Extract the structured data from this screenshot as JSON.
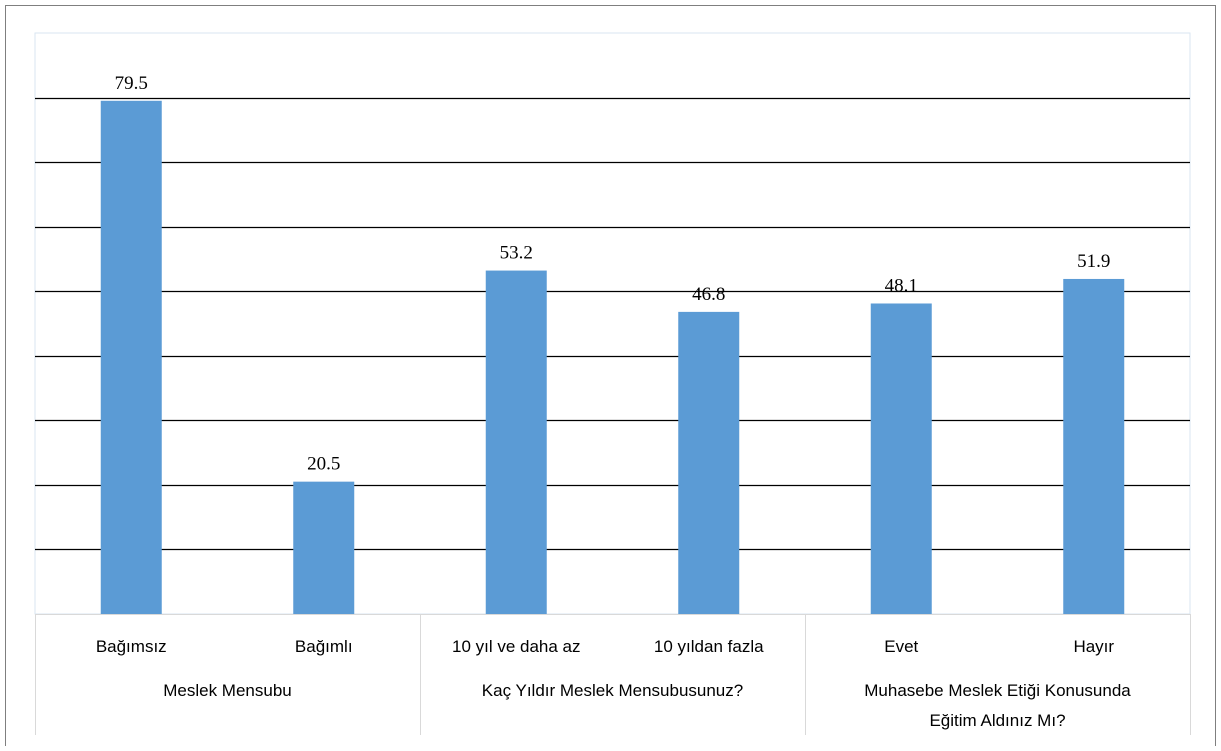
{
  "chart_data": {
    "type": "bar",
    "title": "",
    "xlabel": "",
    "ylabel": "",
    "ylim": [
      0,
      90
    ],
    "grid": true,
    "bar_color": "#5b9bd5",
    "gridline_color": "#000000",
    "groups": [
      {
        "label_lines": [
          "Meslek Mensubu"
        ],
        "categories": [
          "Bağımsız",
          "Bağımlı"
        ],
        "values": [
          79.5,
          20.5
        ]
      },
      {
        "label_lines": [
          "Kaç Yıldır Meslek Mensubusunuz?"
        ],
        "categories": [
          "10 yıl ve daha az",
          "10 yıldan fazla"
        ],
        "values": [
          53.2,
          46.8
        ]
      },
      {
        "label_lines": [
          "Muhasebe Meslek Etiği Konusunda",
          "Eğitim Aldınız Mı?"
        ],
        "categories": [
          "Evet",
          "Hayır"
        ],
        "values": [
          48.1,
          51.9
        ]
      }
    ],
    "value_labels": [
      "79.5",
      "20.5",
      "53.2",
      "46.8",
      "48.1",
      "51.9"
    ]
  }
}
